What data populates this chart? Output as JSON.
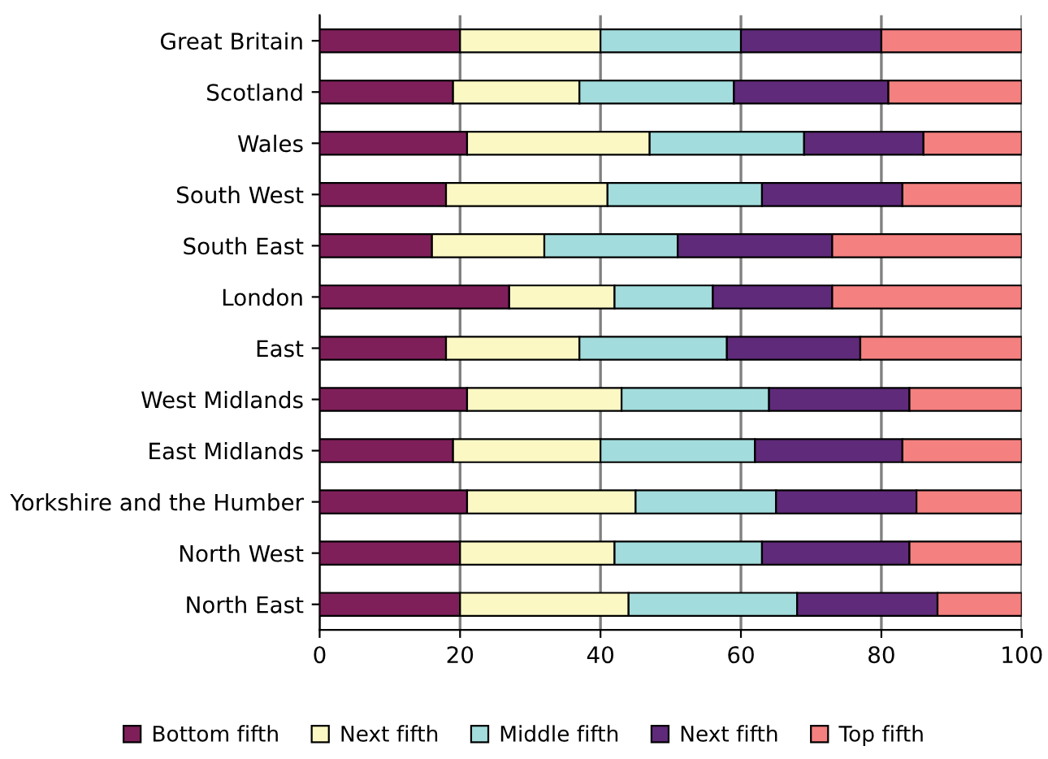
{
  "chart_data": {
    "type": "bar",
    "orientation": "horizontal",
    "stacked": true,
    "categories": [
      "Great Britain",
      "Scotland",
      "Wales",
      "South West",
      "South East",
      "London",
      "East",
      "West Midlands",
      "East Midlands",
      "Yorkshire and the Humber",
      "North West",
      "North East"
    ],
    "series": [
      {
        "name": "Bottom fifth",
        "color": "#7f1f5a",
        "values": [
          20,
          19,
          21,
          18,
          16,
          27,
          18,
          21,
          19,
          21,
          20,
          20
        ]
      },
      {
        "name": "Next fifth",
        "color": "#fbf8c4",
        "values": [
          20,
          18,
          26,
          23,
          16,
          15,
          19,
          22,
          21,
          24,
          22,
          24
        ]
      },
      {
        "name": "Middle fifth",
        "color": "#a3dcdc",
        "values": [
          20,
          22,
          22,
          22,
          19,
          14,
          21,
          21,
          22,
          20,
          21,
          24
        ]
      },
      {
        "name": "Next fifth",
        "color": "#5f2a7a",
        "values": [
          20,
          22,
          17,
          20,
          22,
          17,
          19,
          20,
          21,
          20,
          21,
          20
        ]
      },
      {
        "name": "Top fifth",
        "color": "#f48080",
        "values": [
          20,
          19,
          14,
          17,
          27,
          27,
          23,
          16,
          17,
          15,
          16,
          12
        ]
      }
    ],
    "xlim": [
      0,
      100
    ],
    "xticks": [
      0,
      20,
      40,
      60,
      80,
      100
    ],
    "grid": "x",
    "legend": "bottom"
  }
}
